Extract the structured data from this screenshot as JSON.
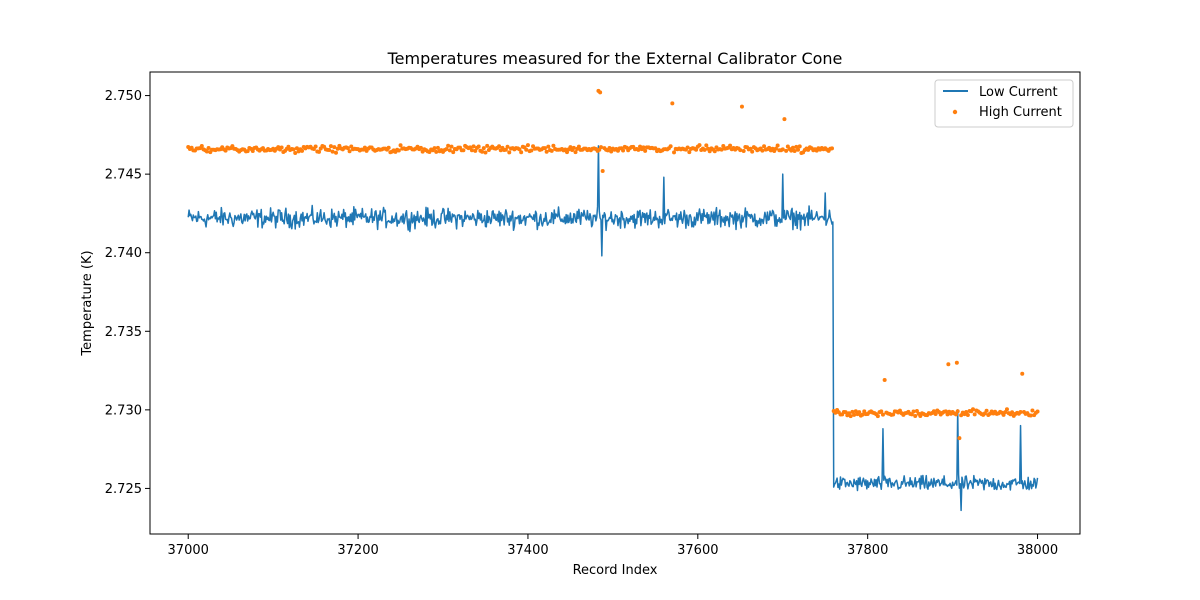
{
  "chart_data": {
    "type": "line",
    "title": "Temperatures measured for the External Calibrator Cone",
    "xlabel": "Record Index",
    "ylabel": "Temperature (K)",
    "xlim": [
      36955,
      38050
    ],
    "ylim": [
      2.7221,
      2.7515
    ],
    "x_ticks": [
      37000,
      37200,
      37400,
      37600,
      37800,
      38000
    ],
    "x_tick_labels": [
      "37000",
      "37200",
      "37400",
      "37600",
      "37800",
      "38000"
    ],
    "y_ticks": [
      2.725,
      2.73,
      2.735,
      2.74,
      2.745,
      2.75
    ],
    "y_tick_labels": [
      "2.725",
      "2.730",
      "2.735",
      "2.740",
      "2.745",
      "2.750"
    ],
    "grid": false,
    "legend_position": "top-right",
    "series": [
      {
        "name": "Low Current",
        "kind": "line",
        "color": "#1f77b4",
        "x_start": 37000,
        "x_end": 38000,
        "segments": [
          {
            "from": 37000,
            "to": 37760,
            "mean": 2.7422,
            "spread": 0.0009
          },
          {
            "from": 37760,
            "to": 38000,
            "mean": 2.7253,
            "spread": 0.0007
          }
        ],
        "spikes": [
          {
            "x": 37483,
            "y": 2.7468
          },
          {
            "x": 37487,
            "y": 2.7398
          },
          {
            "x": 37560,
            "y": 2.7448
          },
          {
            "x": 37700,
            "y": 2.745
          },
          {
            "x": 37750,
            "y": 2.7438
          },
          {
            "x": 37818,
            "y": 2.7288
          },
          {
            "x": 37906,
            "y": 2.73
          },
          {
            "x": 37910,
            "y": 2.7236
          },
          {
            "x": 37980,
            "y": 2.729
          }
        ]
      },
      {
        "name": "High Current",
        "kind": "scatter",
        "color": "#ff7f0e",
        "x_start": 37000,
        "x_end": 38000,
        "segments": [
          {
            "from": 37000,
            "to": 37760,
            "mean": 2.7466,
            "spread": 0.0003
          },
          {
            "from": 37760,
            "to": 38000,
            "mean": 2.7298,
            "spread": 0.0003
          }
        ],
        "spikes": [
          {
            "x": 37483,
            "y": 2.7503
          },
          {
            "x": 37485,
            "y": 2.7502
          },
          {
            "x": 37488,
            "y": 2.7452
          },
          {
            "x": 37570,
            "y": 2.7495
          },
          {
            "x": 37652,
            "y": 2.7493
          },
          {
            "x": 37702,
            "y": 2.7485
          },
          {
            "x": 37895,
            "y": 2.7329
          },
          {
            "x": 37905,
            "y": 2.733
          },
          {
            "x": 37820,
            "y": 2.7319
          },
          {
            "x": 37982,
            "y": 2.7323
          },
          {
            "x": 37908,
            "y": 2.7282
          }
        ]
      }
    ]
  }
}
